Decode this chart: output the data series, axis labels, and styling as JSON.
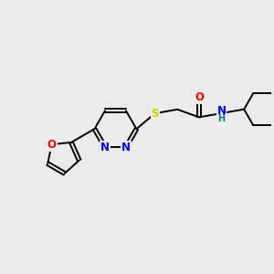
{
  "bg_color": "#ebebeb",
  "bond_color": "#000000",
  "atom_colors": {
    "N": "#0000ff",
    "O": "#ff0000",
    "S": "#cccc00",
    "H": "#008080",
    "C": "#000000"
  },
  "figsize": [
    3.0,
    3.0
  ],
  "dpi": 100
}
